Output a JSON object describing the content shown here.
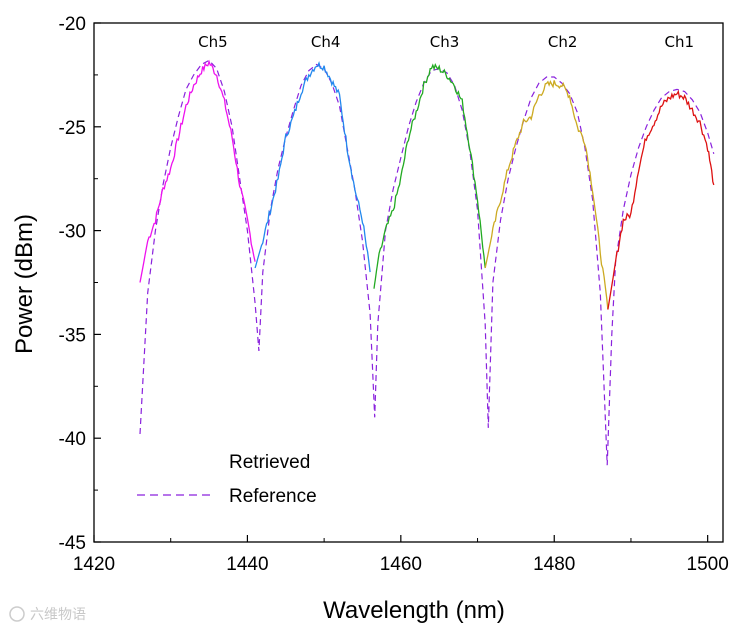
{
  "chart_data": {
    "type": "line",
    "title": "",
    "xlabel": "Wavelength (nm)",
    "ylabel": "Power (dBm)",
    "xlim": [
      1420,
      1502
    ],
    "ylim": [
      -45,
      -20
    ],
    "xticks": [
      1420,
      1440,
      1460,
      1480,
      1500
    ],
    "yticks": [
      -20,
      -25,
      -30,
      -35,
      -40,
      -45
    ],
    "channel_labels": [
      {
        "text": "Ch5",
        "x": 1435.5
      },
      {
        "text": "Ch4",
        "x": 1450.2
      },
      {
        "text": "Ch3",
        "x": 1465.7
      },
      {
        "text": "Ch2",
        "x": 1481.1
      },
      {
        "text": "Ch1",
        "x": 1496.3
      }
    ],
    "series": [
      {
        "name": "Retrieved",
        "style": "solid rainbow (magenta to red)",
        "segments": [
          {
            "channel": "Ch5",
            "color": "#ee11ee",
            "x": [
              1426,
              1427,
              1428,
              1429,
              1430,
              1431,
              1432,
              1433,
              1434,
              1435,
              1436,
              1437,
              1438,
              1439,
              1440,
              1441
            ],
            "y": [
              -32.5,
              -30.5,
              -29.5,
              -28.0,
              -27.0,
              -25.5,
              -24.0,
              -23.0,
              -22.3,
              -21.9,
              -22.5,
              -23.8,
              -25.5,
              -27.8,
              -29.5,
              -31.5
            ]
          },
          {
            "channel": "Ch4",
            "color": "#2288ee",
            "x": [
              1441,
              1442,
              1443,
              1444,
              1445,
              1446,
              1447,
              1448,
              1449,
              1450,
              1451,
              1452,
              1453,
              1454,
              1455,
              1456
            ],
            "y": [
              -31.8,
              -30.5,
              -29.0,
              -27.5,
              -25.5,
              -24.5,
              -23.3,
              -22.5,
              -22.0,
              -22.1,
              -22.8,
              -23.5,
              -26.0,
              -28.0,
              -29.5,
              -32.0
            ]
          },
          {
            "channel": "Ch3",
            "color": "#22aa22",
            "x": [
              1456.5,
              1457,
              1458,
              1459,
              1460,
              1461,
              1462,
              1463,
              1464,
              1465,
              1466,
              1467,
              1468,
              1469,
              1470,
              1471
            ],
            "y": [
              -32.8,
              -31.5,
              -30.0,
              -29.0,
              -27.5,
              -25.5,
              -24.3,
              -23.0,
              -22.1,
              -22.2,
              -22.5,
              -23.0,
              -23.8,
              -26.0,
              -28.5,
              -31.8
            ]
          },
          {
            "channel": "Ch2",
            "color": "#ccaa22",
            "x": [
              1471,
              1472,
              1473,
              1474,
              1475,
              1476,
              1477,
              1478,
              1479,
              1480,
              1481,
              1482,
              1483,
              1484,
              1485,
              1486,
              1487
            ],
            "y": [
              -31.8,
              -30.0,
              -28.5,
              -27.0,
              -25.8,
              -24.8,
              -24.5,
              -23.5,
              -23.0,
              -22.9,
              -23.0,
              -23.5,
              -25.0,
              -25.7,
              -28.0,
              -31.0,
              -33.8
            ]
          },
          {
            "channel": "Ch1",
            "color": "#dd1111",
            "x": [
              1487,
              1488,
              1489,
              1490,
              1491,
              1492,
              1493,
              1494,
              1495,
              1496,
              1497,
              1498,
              1499,
              1500,
              1500.8
            ],
            "y": [
              -33.8,
              -31.5,
              -29.5,
              -29.2,
              -27.0,
              -25.5,
              -24.8,
              -24.0,
              -23.6,
              -23.4,
              -23.6,
              -24.2,
              -24.8,
              -26.0,
              -27.8
            ]
          }
        ]
      },
      {
        "name": "Reference",
        "color": "#8a22dd",
        "style": "dashed",
        "x": [
          1426,
          1427,
          1428,
          1429,
          1430,
          1431,
          1432,
          1433,
          1434,
          1435,
          1436,
          1437,
          1438,
          1439,
          1440,
          1441,
          1441.5,
          1442,
          1443,
          1444,
          1445,
          1446,
          1447,
          1448,
          1449,
          1450,
          1451,
          1452,
          1453,
          1454,
          1455,
          1456,
          1456.6,
          1457,
          1458,
          1459,
          1460,
          1461,
          1462,
          1463,
          1464,
          1465,
          1466,
          1467,
          1468,
          1469,
          1470,
          1471,
          1471.4,
          1472,
          1473,
          1474,
          1475,
          1476,
          1477,
          1478,
          1479,
          1480,
          1481,
          1482,
          1483,
          1484,
          1485,
          1486,
          1486.9,
          1487.5,
          1488,
          1489,
          1490,
          1491,
          1492,
          1493,
          1494,
          1495,
          1496,
          1497,
          1498,
          1499,
          1500,
          1500.8
        ],
        "y": [
          -39.8,
          -33.0,
          -30.0,
          -27.8,
          -26.0,
          -24.5,
          -23.2,
          -22.5,
          -22.0,
          -21.8,
          -22.2,
          -23.3,
          -25.0,
          -27.5,
          -30.0,
          -33.5,
          -35.8,
          -32.0,
          -29.0,
          -27.0,
          -25.5,
          -24.2,
          -23.0,
          -22.3,
          -22.0,
          -22.2,
          -22.9,
          -24.0,
          -26.0,
          -28.0,
          -30.5,
          -34.0,
          -39.0,
          -34.5,
          -30.0,
          -28.0,
          -26.5,
          -25.0,
          -23.8,
          -22.9,
          -22.3,
          -22.2,
          -22.4,
          -23.0,
          -24.2,
          -26.2,
          -29.0,
          -34.5,
          -39.5,
          -32.5,
          -29.5,
          -27.5,
          -26.0,
          -24.7,
          -23.6,
          -22.9,
          -22.6,
          -22.6,
          -22.9,
          -23.4,
          -24.3,
          -26.0,
          -28.5,
          -33.0,
          -41.3,
          -35.0,
          -31.5,
          -29.0,
          -27.3,
          -26.0,
          -25.0,
          -24.2,
          -23.6,
          -23.3,
          -23.2,
          -23.3,
          -23.7,
          -24.3,
          -25.3,
          -26.3
        ]
      }
    ],
    "legend": {
      "position": "bottom-left",
      "entries": [
        {
          "label": "Retrieved",
          "style": "solid-rainbow"
        },
        {
          "label": "Reference",
          "style": "dashed",
          "color": "#8a22dd"
        }
      ]
    }
  },
  "watermark": "六维物语"
}
